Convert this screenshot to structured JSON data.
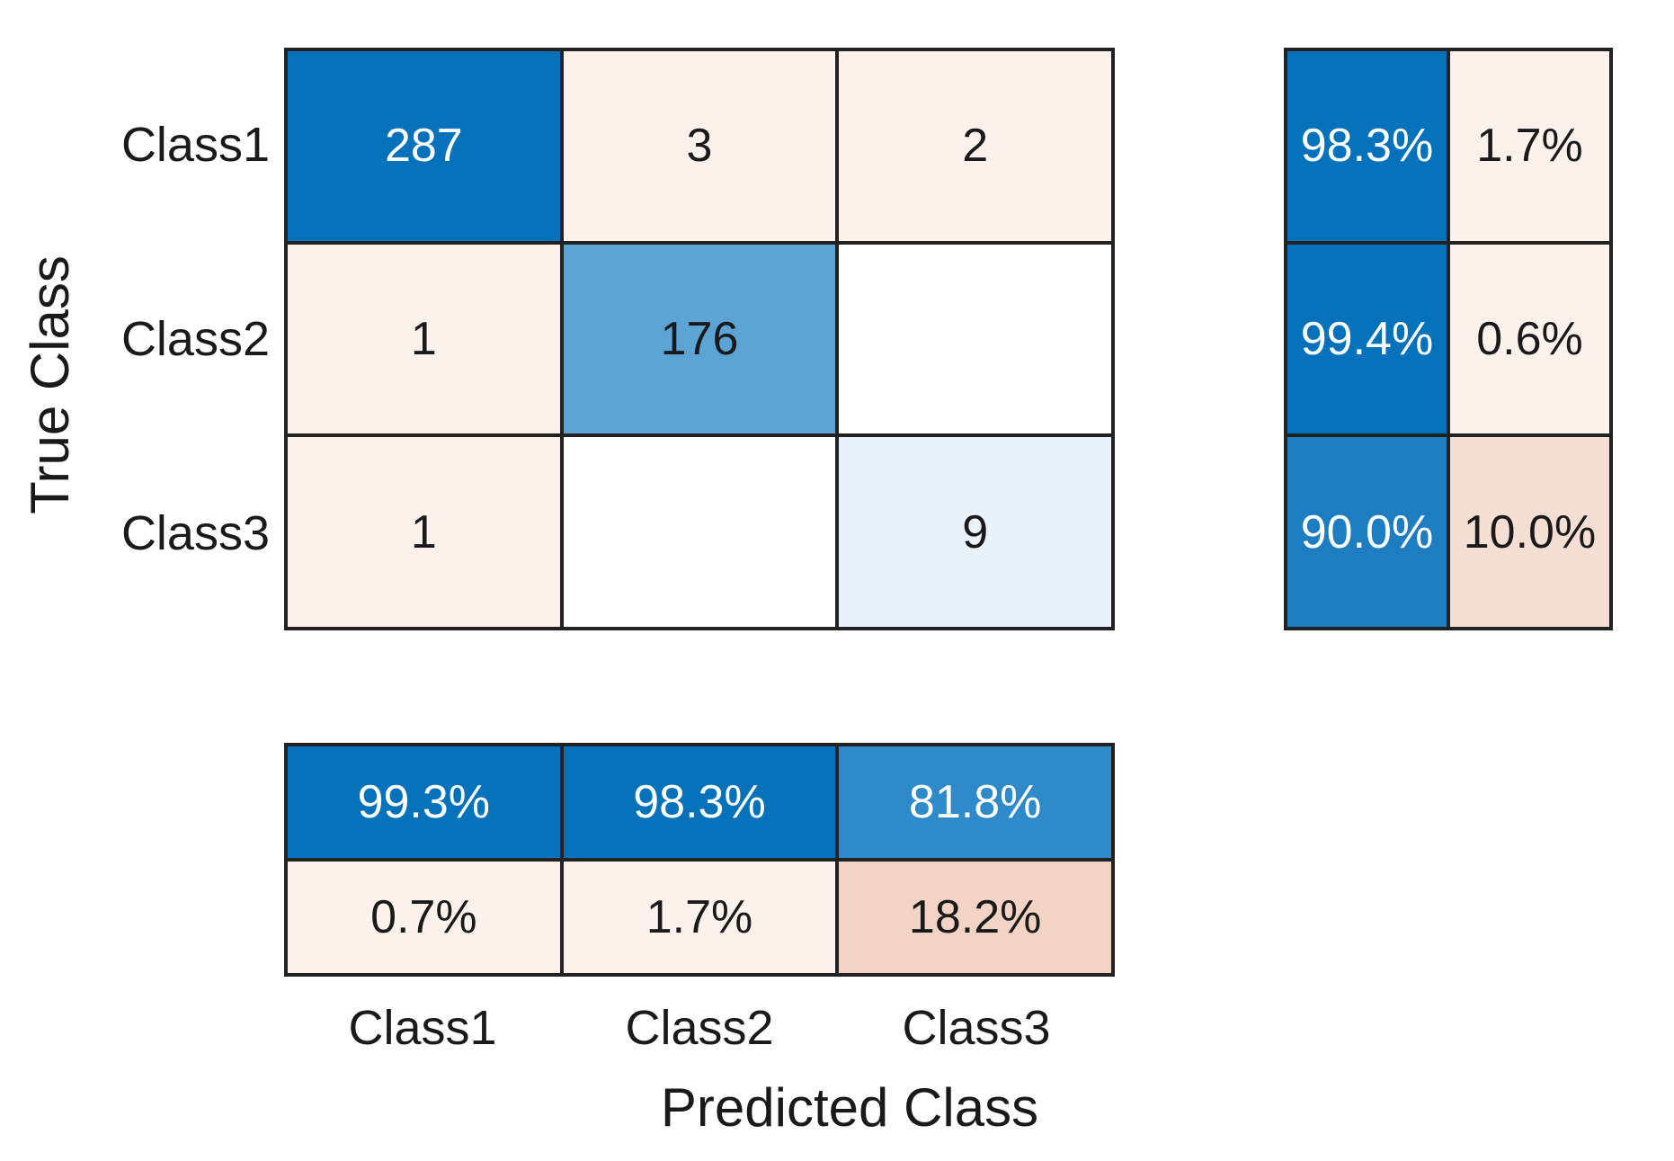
{
  "chart_data": {
    "type": "heatmap",
    "subtype": "confusion_matrix",
    "xlabel": "Predicted Class",
    "ylabel": "True Class",
    "true_classes": [
      "Class1",
      "Class2",
      "Class3"
    ],
    "predicted_classes": [
      "Class1",
      "Class2",
      "Class3"
    ],
    "counts": [
      [
        287,
        3,
        2
      ],
      [
        1,
        176,
        null
      ],
      [
        1,
        null,
        9
      ]
    ],
    "row_summary": {
      "position": "right",
      "correct_pct": [
        98.3,
        99.4,
        90.0
      ],
      "incorrect_pct": [
        1.7,
        0.6,
        10.0
      ]
    },
    "col_summary": {
      "position": "bottom",
      "correct_pct": [
        99.3,
        98.3,
        81.8
      ],
      "incorrect_pct": [
        0.7,
        1.7,
        18.2
      ]
    },
    "grid_border_color": "#222222",
    "colors": {
      "diagonal_strong_blue": "#0472ba",
      "diagonal_blue_90pct": "#1e7dc0",
      "diagonal_blue_81pct": "#2e8ac8",
      "diagonal_blue_176": "#5ba4d4",
      "diagonal_pale_blue_9": "#e9f1fa",
      "offdiag_pale_pink": "#fdf1ec",
      "offdiag_salmon_10pct": "#f5dfd4",
      "offdiag_salmon_18pct": "#f3d4c4",
      "zero_cell_white": "#ffffff",
      "text_dark": "#1a1a1a",
      "text_light": "#ffffff"
    },
    "cells": {
      "matrix": [
        [
          {
            "text": "287",
            "bg": "#0472ba",
            "fg": "#ffffff"
          },
          {
            "text": "3",
            "bg": "#fdf1ec",
            "fg": "#1a1a1a"
          },
          {
            "text": "2",
            "bg": "#fdf1ec",
            "fg": "#1a1a1a"
          }
        ],
        [
          {
            "text": "1",
            "bg": "#fdf1ec",
            "fg": "#1a1a1a"
          },
          {
            "text": "176",
            "bg": "#5ba4d4",
            "fg": "#1a1a1a"
          },
          {
            "text": "",
            "bg": "#ffffff",
            "fg": "#1a1a1a"
          }
        ],
        [
          {
            "text": "1",
            "bg": "#fdf1ec",
            "fg": "#1a1a1a"
          },
          {
            "text": "",
            "bg": "#ffffff",
            "fg": "#1a1a1a"
          },
          {
            "text": "9",
            "bg": "#e9f1fa",
            "fg": "#1a1a1a"
          }
        ]
      ],
      "row_summary": [
        [
          {
            "text": "98.3%",
            "bg": "#0472ba",
            "fg": "#ffffff"
          },
          {
            "text": "1.7%",
            "bg": "#fdf1ec",
            "fg": "#1a1a1a"
          }
        ],
        [
          {
            "text": "99.4%",
            "bg": "#0472ba",
            "fg": "#ffffff"
          },
          {
            "text": "0.6%",
            "bg": "#fdf1ec",
            "fg": "#1a1a1a"
          }
        ],
        [
          {
            "text": "90.0%",
            "bg": "#1e7dc0",
            "fg": "#ffffff"
          },
          {
            "text": "10.0%",
            "bg": "#f5dfd4",
            "fg": "#1a1a1a"
          }
        ]
      ],
      "col_summary": [
        [
          {
            "text": "99.3%",
            "bg": "#0472ba",
            "fg": "#ffffff"
          },
          {
            "text": "98.3%",
            "bg": "#0472ba",
            "fg": "#ffffff"
          },
          {
            "text": "81.8%",
            "bg": "#2e8ac8",
            "fg": "#ffffff"
          }
        ],
        [
          {
            "text": "0.7%",
            "bg": "#fdf1ec",
            "fg": "#1a1a1a"
          },
          {
            "text": "1.7%",
            "bg": "#fdf1ec",
            "fg": "#1a1a1a"
          },
          {
            "text": "18.2%",
            "bg": "#f3d4c4",
            "fg": "#1a1a1a"
          }
        ]
      ]
    }
  }
}
